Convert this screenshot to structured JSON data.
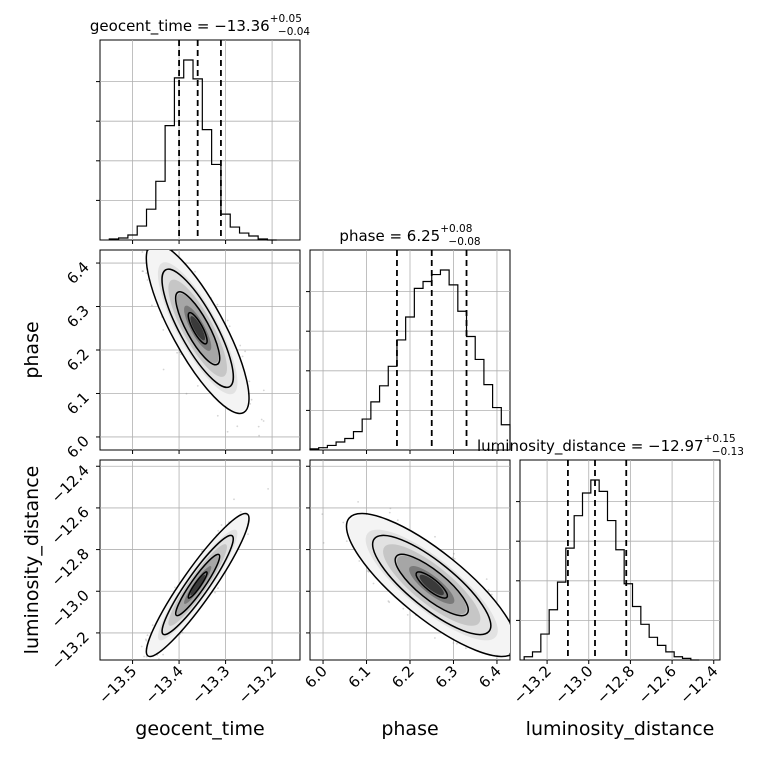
{
  "chart_data": {
    "type": "corner",
    "parameters": [
      "geocent_time",
      "phase",
      "luminosity_distance"
    ],
    "axis_labels": [
      "geocent_time",
      "phase",
      "luminosity_distance"
    ],
    "titles": [
      {
        "param": "geocent_time",
        "median": "−13.36",
        "plus": "+0.05",
        "minus": "−0.04",
        "prefix": "geocent_time = "
      },
      {
        "param": "phase",
        "median": "6.25",
        "plus": "+0.08",
        "minus": "−0.08",
        "prefix": "phase = "
      },
      {
        "param": "luminosity_distance",
        "median": "−12.97",
        "plus": "+0.15",
        "minus": "−0.13",
        "prefix": "luminosity_distance = "
      }
    ],
    "ranges": {
      "geocent_time": [
        -13.57,
        -13.14
      ],
      "phase": [
        5.97,
        6.43
      ],
      "luminosity_distance": [
        -13.33,
        -12.37
      ]
    },
    "ticks": {
      "geocent_time": {
        "values": [
          -13.5,
          -13.4,
          -13.3,
          -13.2
        ],
        "labels": [
          "−13.5",
          "−13.4",
          "−13.3",
          "−13.2"
        ]
      },
      "phase": {
        "values": [
          6.0,
          6.1,
          6.2,
          6.3,
          6.4
        ],
        "labels": [
          "6.0",
          "6.1",
          "6.2",
          "6.3",
          "6.4"
        ]
      },
      "luminosity_distance": {
        "values": [
          -13.2,
          -13.0,
          -12.8,
          -12.6,
          -12.4
        ],
        "labels": [
          "−13.2",
          "−13.0",
          "−12.8",
          "−12.6",
          "−12.4"
        ]
      }
    },
    "quantiles": {
      "geocent_time": [
        -13.4,
        -13.36,
        -13.31
      ],
      "phase": [
        6.17,
        6.25,
        6.33
      ],
      "luminosity_distance": [
        -13.1,
        -12.97,
        -12.82
      ]
    },
    "histograms": {
      "geocent_time": {
        "edges": [
          -13.55,
          -13.53,
          -13.51,
          -13.49,
          -13.47,
          -13.45,
          -13.43,
          -13.41,
          -13.39,
          -13.37,
          -13.35,
          -13.33,
          -13.31,
          -13.29,
          -13.27,
          -13.25,
          -13.23,
          -13.21,
          -13.19
        ],
        "counts": [
          1,
          2,
          5,
          14,
          31,
          59,
          115,
          163,
          181,
          162,
          111,
          76,
          26,
          13,
          7,
          4,
          1,
          0
        ]
      },
      "phase": {
        "edges": [
          5.97,
          5.99,
          6.01,
          6.03,
          6.05,
          6.07,
          6.09,
          6.11,
          6.13,
          6.15,
          6.17,
          6.19,
          6.21,
          6.23,
          6.25,
          6.27,
          6.29,
          6.31,
          6.33,
          6.35,
          6.37,
          6.39,
          6.41,
          6.43
        ],
        "counts": [
          1,
          2,
          4,
          7,
          10,
          16,
          27,
          42,
          56,
          73,
          96,
          116,
          141,
          147,
          153,
          157,
          144,
          121,
          99,
          79,
          57,
          37,
          22
        ]
      },
      "luminosity_distance": {
        "edges": [
          -13.31,
          -13.27,
          -13.23,
          -13.19,
          -13.15,
          -13.11,
          -13.07,
          -13.03,
          -12.99,
          -12.95,
          -12.91,
          -12.87,
          -12.83,
          -12.79,
          -12.75,
          -12.71,
          -12.67,
          -12.63,
          -12.59,
          -12.55,
          -12.51,
          -12.47
        ],
        "counts": [
          2,
          5,
          16,
          31,
          48,
          69,
          89,
          103,
          111,
          104,
          86,
          68,
          47,
          33,
          22,
          14,
          9,
          5,
          2,
          1,
          0
        ]
      }
    },
    "correlations": {
      "phase|geocent_time": -0.82,
      "luminosity_distance|geocent_time": 0.93,
      "luminosity_distance|phase": -0.82
    },
    "contour_levels": [
      0.5,
      1.0,
      1.5,
      2.0
    ],
    "colors": {
      "ink": "#000000",
      "grid": "#b0b0b0",
      "points": "#888888"
    },
    "grid": true
  }
}
